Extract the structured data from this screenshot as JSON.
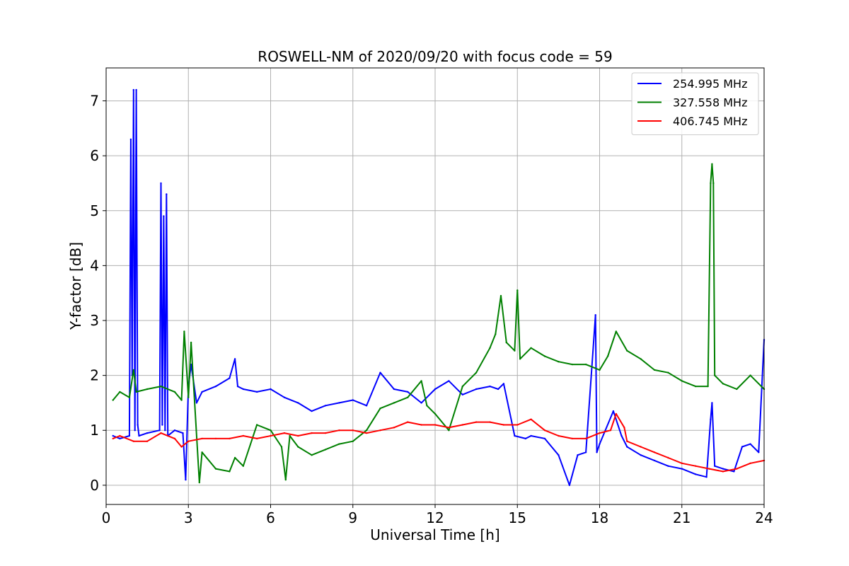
{
  "chart_data": {
    "type": "line",
    "title": "ROSWELL-NM of 2020/09/20 with focus code = 59",
    "xlabel": "Universal Time [h]",
    "ylabel": "Y-factor [dB]",
    "xlim": [
      0,
      24
    ],
    "ylim": [
      -0.35,
      7.6
    ],
    "xticks": [
      0,
      3,
      6,
      9,
      12,
      15,
      18,
      21,
      24
    ],
    "yticks": [
      0,
      1,
      2,
      3,
      4,
      5,
      6,
      7
    ],
    "grid": true,
    "legend_position": "top-right",
    "series": [
      {
        "name": "254.995 MHz",
        "color": "#0000ff",
        "x": [
          0.25,
          0.5,
          0.85,
          0.9,
          0.95,
          1.0,
          1.05,
          1.1,
          1.15,
          1.2,
          1.5,
          1.95,
          2.0,
          2.05,
          2.1,
          2.15,
          2.2,
          2.25,
          2.5,
          2.8,
          2.9,
          3.0,
          3.1,
          3.3,
          3.5,
          4.0,
          4.5,
          4.7,
          4.8,
          5.0,
          5.5,
          6.0,
          6.5,
          7.0,
          7.5,
          8.0,
          8.5,
          9.0,
          9.5,
          10.0,
          10.5,
          11.0,
          11.5,
          12.0,
          12.5,
          13.0,
          13.5,
          14.0,
          14.3,
          14.5,
          14.9,
          15.3,
          15.5,
          16.0,
          16.5,
          16.9,
          17.2,
          17.5,
          17.85,
          17.9,
          18.0,
          18.5,
          18.8,
          19.0,
          19.5,
          20.0,
          20.5,
          21.0,
          21.5,
          21.9,
          22.05,
          22.1,
          22.2,
          22.5,
          22.9,
          23.2,
          23.5,
          23.8,
          24.0
        ],
        "y": [
          0.9,
          0.85,
          0.9,
          6.3,
          2.0,
          7.2,
          1.0,
          7.2,
          1.1,
          0.9,
          0.95,
          1.0,
          5.5,
          1.1,
          4.9,
          1.0,
          5.3,
          0.9,
          1.0,
          0.95,
          0.1,
          1.8,
          2.2,
          1.5,
          1.7,
          1.8,
          1.95,
          2.3,
          1.8,
          1.75,
          1.7,
          1.75,
          1.6,
          1.5,
          1.35,
          1.45,
          1.5,
          1.55,
          1.45,
          2.05,
          1.75,
          1.7,
          1.5,
          1.75,
          1.9,
          1.65,
          1.75,
          1.8,
          1.75,
          1.85,
          0.9,
          0.85,
          0.9,
          0.85,
          0.55,
          0.0,
          0.55,
          0.6,
          3.1,
          0.6,
          0.75,
          1.35,
          0.9,
          0.7,
          0.55,
          0.45,
          0.35,
          0.3,
          0.2,
          0.15,
          1.2,
          1.5,
          0.35,
          0.3,
          0.25,
          0.7,
          0.75,
          0.6,
          2.65
        ]
      },
      {
        "name": "327.558 MHz",
        "color": "#008000",
        "x": [
          0.25,
          0.5,
          0.85,
          1.0,
          1.1,
          1.5,
          2.0,
          2.5,
          2.75,
          2.85,
          3.0,
          3.1,
          3.4,
          3.5,
          4.0,
          4.5,
          4.7,
          5.0,
          5.5,
          6.0,
          6.4,
          6.55,
          6.7,
          7.0,
          7.5,
          8.0,
          8.5,
          9.0,
          9.5,
          10.0,
          10.5,
          11.0,
          11.5,
          11.7,
          12.0,
          12.5,
          13.0,
          13.5,
          14.0,
          14.2,
          14.4,
          14.6,
          14.9,
          15.0,
          15.1,
          15.5,
          16.0,
          16.5,
          17.0,
          17.5,
          18.0,
          18.3,
          18.6,
          19.0,
          19.5,
          20.0,
          20.5,
          21.0,
          21.5,
          21.95,
          22.05,
          22.1,
          22.15,
          22.2,
          22.5,
          23.0,
          23.5,
          24.0
        ],
        "y": [
          1.55,
          1.7,
          1.6,
          2.1,
          1.7,
          1.75,
          1.8,
          1.7,
          1.55,
          2.8,
          1.6,
          2.6,
          0.05,
          0.6,
          0.3,
          0.25,
          0.5,
          0.35,
          1.1,
          1.0,
          0.7,
          0.1,
          0.9,
          0.7,
          0.55,
          0.65,
          0.75,
          0.8,
          1.0,
          1.4,
          1.5,
          1.6,
          1.9,
          1.45,
          1.3,
          1.0,
          1.8,
          2.05,
          2.5,
          2.75,
          3.45,
          2.6,
          2.45,
          3.55,
          2.3,
          2.5,
          2.35,
          2.25,
          2.2,
          2.2,
          2.1,
          2.35,
          2.8,
          2.45,
          2.3,
          2.1,
          2.05,
          1.9,
          1.8,
          1.8,
          5.5,
          5.85,
          5.5,
          2.0,
          1.85,
          1.75,
          2.0,
          1.75
        ]
      },
      {
        "name": "406.745 MHz",
        "color": "#ff0000",
        "x": [
          0.25,
          0.5,
          1.0,
          1.5,
          2.0,
          2.5,
          2.75,
          3.0,
          3.5,
          4.0,
          4.5,
          5.0,
          5.5,
          6.0,
          6.5,
          7.0,
          7.5,
          8.0,
          8.5,
          9.0,
          9.5,
          10.0,
          10.5,
          11.0,
          11.5,
          12.0,
          12.5,
          13.0,
          13.5,
          14.0,
          14.5,
          15.0,
          15.5,
          16.0,
          16.5,
          17.0,
          17.5,
          18.0,
          18.4,
          18.6,
          18.9,
          19.0,
          19.5,
          20.0,
          20.5,
          21.0,
          21.5,
          22.0,
          22.5,
          23.0,
          23.5,
          24.0
        ],
        "y": [
          0.85,
          0.9,
          0.8,
          0.8,
          0.95,
          0.85,
          0.7,
          0.8,
          0.85,
          0.85,
          0.85,
          0.9,
          0.85,
          0.9,
          0.95,
          0.9,
          0.95,
          0.95,
          1.0,
          1.0,
          0.95,
          1.0,
          1.05,
          1.15,
          1.1,
          1.1,
          1.05,
          1.1,
          1.15,
          1.15,
          1.1,
          1.1,
          1.2,
          1.0,
          0.9,
          0.85,
          0.85,
          0.95,
          1.0,
          1.3,
          1.05,
          0.8,
          0.7,
          0.6,
          0.5,
          0.4,
          0.35,
          0.3,
          0.25,
          0.3,
          0.4,
          0.45
        ]
      }
    ]
  }
}
